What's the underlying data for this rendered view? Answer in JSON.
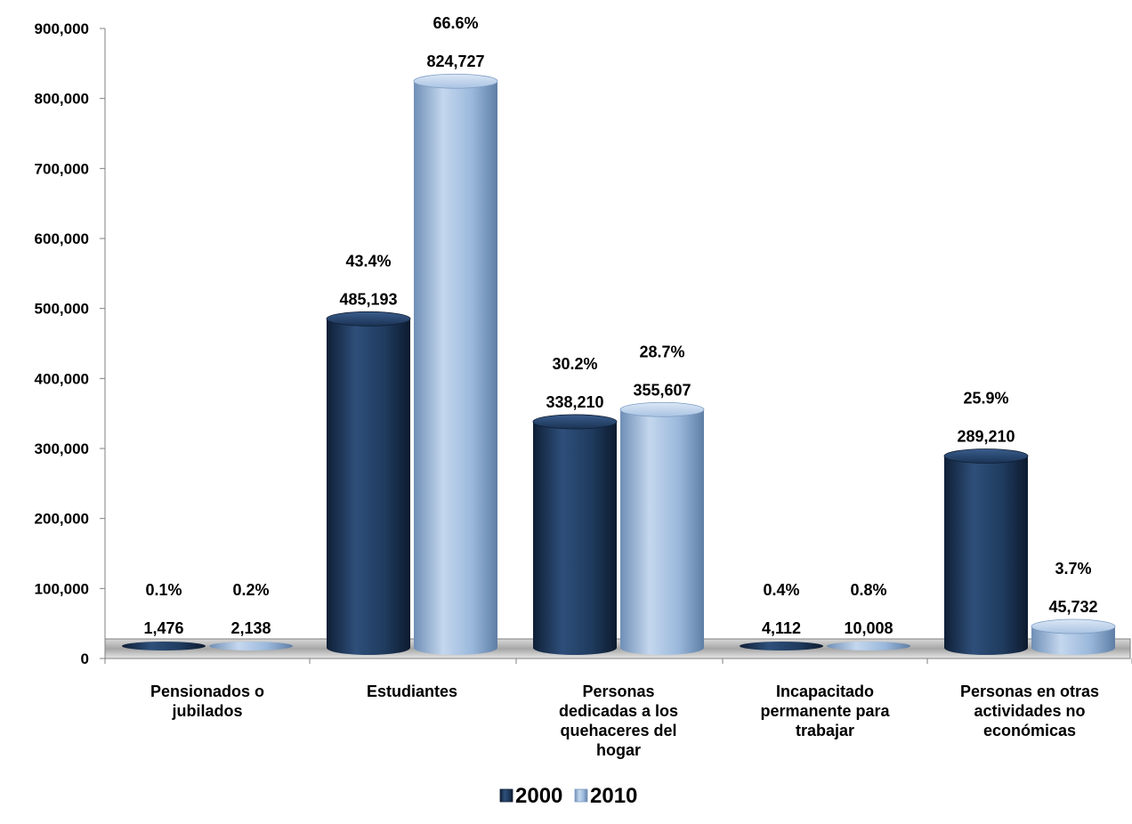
{
  "chart_data": {
    "type": "bar",
    "title": "",
    "xlabel": "",
    "ylabel": "",
    "ylim": [
      0,
      900000
    ],
    "yticks": [
      0,
      100000,
      200000,
      300000,
      400000,
      500000,
      600000,
      700000,
      800000,
      900000
    ],
    "ytick_labels": [
      "0",
      "100,000",
      "200,000",
      "300,000",
      "400,000",
      "500,000",
      "600,000",
      "700,000",
      "800,000",
      "900,000"
    ],
    "grid": false,
    "legend_position": "bottom",
    "categories": [
      [
        "Pensionados o",
        "jubilados"
      ],
      [
        "Estudiantes"
      ],
      [
        "Personas",
        "dedicadas a los",
        "quehaceres del",
        "hogar"
      ],
      [
        "Incapacitado",
        "permanente para",
        "trabajar"
      ],
      [
        "Personas en otras",
        "actividades no",
        "económicas"
      ]
    ],
    "series": [
      {
        "name": "2000",
        "color": "#1f3b5e",
        "values": [
          1476,
          485193,
          338210,
          4112,
          289210
        ],
        "value_labels": [
          "1,476",
          "485,193",
          "338,210",
          "4,112",
          "289,210"
        ],
        "percent_labels": [
          "0.1%",
          "43.4%",
          "30.2%",
          "0.4%",
          "25.9%"
        ]
      },
      {
        "name": "2010",
        "color": "#9ab8db",
        "values": [
          2138,
          824727,
          355607,
          10008,
          45732
        ],
        "value_labels": [
          "2,138",
          "824,727",
          "355,607",
          "10,008",
          "45,732"
        ],
        "percent_labels": [
          "0.2%",
          "66.6%",
          "28.7%",
          "0.8%",
          "3.7%"
        ]
      }
    ]
  }
}
